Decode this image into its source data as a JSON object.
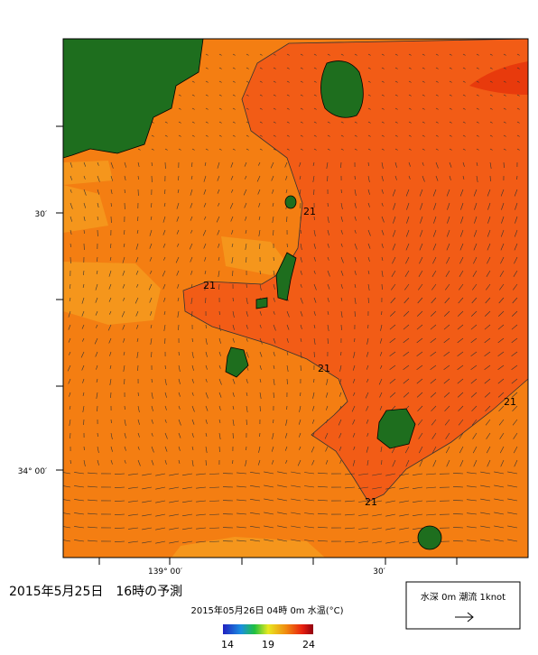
{
  "map": {
    "title": "2015年5月25日　16時の予測",
    "subtitle": "2015年05月26日 04時 0m 水温(°C)",
    "lat_labels": [
      "30′",
      "34° 00′"
    ],
    "lon_labels": [
      "139° 00′",
      "30′"
    ],
    "contour_labels": [
      "21",
      "21",
      "21",
      "21",
      "21"
    ],
    "colorbar": {
      "range": [
        14,
        24
      ],
      "ticks": [
        14,
        19,
        24
      ]
    },
    "legend": {
      "text": "水深 0m 潮流 1knot"
    }
  }
}
